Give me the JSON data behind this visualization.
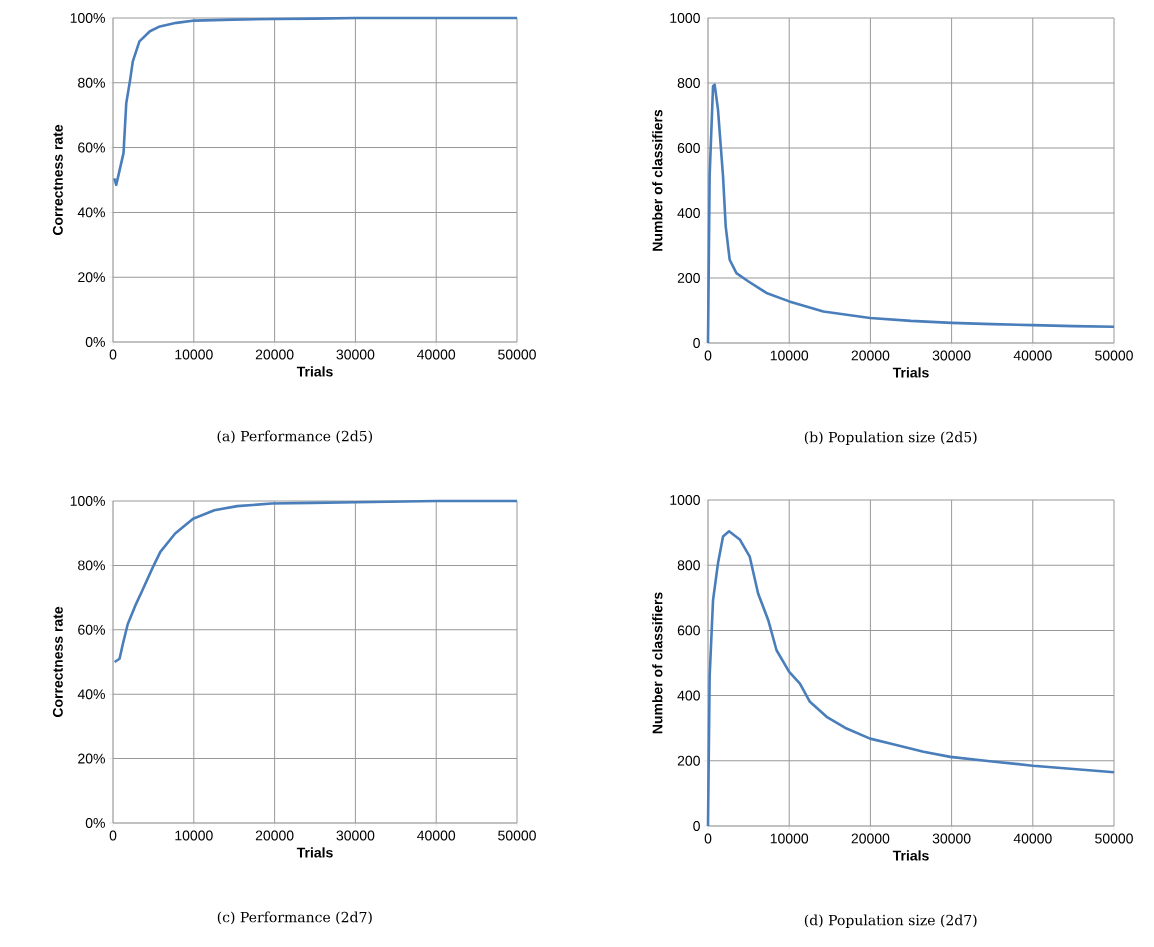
{
  "chart_data": [
    {
      "type": "line",
      "xlabel": "Trials",
      "ylabel": "Correctness rate",
      "annotations": [
        "(a)  Performance (2d5)"
      ],
      "grid": true,
      "x": [
        160,
        400,
        1300,
        1640,
        2120,
        2450,
        3270,
        4570,
        5800,
        7840,
        10090,
        14790,
        20000,
        25000,
        30000,
        35000,
        40000,
        45000,
        50000
      ],
      "series": [
        {
          "color": "#4a7ebb",
          "values": [
            50.5,
            48.5,
            58.3,
            73.7,
            80.9,
            86.6,
            92.8,
            95.9,
            97.4,
            98.5,
            99.2,
            99.5,
            99.7,
            99.8,
            100,
            100,
            100,
            100,
            100
          ]
        }
      ],
      "xlim": [
        0,
        50000
      ],
      "xticks": [
        0,
        10000,
        20000,
        30000,
        40000,
        50000
      ],
      "ylim": [
        0,
        100
      ],
      "yticks": [
        {
          "value": 0,
          "label": "0%"
        },
        {
          "value": 20,
          "label": "20%"
        },
        {
          "value": 40,
          "label": "40%"
        },
        {
          "value": 60,
          "label": "60%"
        },
        {
          "value": 80,
          "label": "80%"
        },
        {
          "value": 100,
          "label": "100%"
        }
      ]
    },
    {
      "type": "line",
      "xlabel": "Trials",
      "ylabel": "Number of classifiers",
      "annotations": [
        "(b)  Population size (2d5)"
      ],
      "grid": true,
      "x": [
        0,
        200,
        620,
        820,
        1230,
        1850,
        2180,
        2670,
        3500,
        4940,
        7200,
        10000,
        14200,
        19960,
        25000,
        30000,
        35000,
        40000,
        45000,
        50000
      ],
      "series": [
        {
          "color": "#4a7ebb",
          "values": [
            0,
            513,
            790,
            795,
            718,
            513,
            359,
            256,
            215,
            190,
            154,
            128,
            97,
            77,
            68,
            62,
            58,
            55,
            52,
            50
          ]
        }
      ],
      "xlim": [
        0,
        50000
      ],
      "xticks": [
        0,
        10000,
        20000,
        30000,
        40000,
        50000
      ],
      "ylim": [
        0,
        1000
      ],
      "yticks": [
        0,
        200,
        400,
        600,
        800,
        1000
      ]
    },
    {
      "type": "line",
      "xlabel": "Trials",
      "ylabel": "Correctness rate",
      "annotations": [
        "(c)  Performance (2d7)"
      ],
      "grid": true,
      "x": [
        200,
        810,
        1210,
        1820,
        2830,
        3640,
        4850,
        5860,
        7690,
        9910,
        12540,
        15370,
        19620,
        24640,
        30000,
        35000,
        40000,
        45000,
        50000
      ],
      "series": [
        {
          "color": "#4a7ebb",
          "values": [
            50,
            51,
            55.5,
            61.7,
            67.9,
            72.3,
            79,
            84.2,
            89.9,
            94.5,
            97.1,
            98.4,
            99.2,
            99.4,
            99.6,
            99.8,
            100,
            100,
            100
          ]
        }
      ],
      "xlim": [
        0,
        50000
      ],
      "xticks": [
        0,
        10000,
        20000,
        30000,
        40000,
        50000
      ],
      "ylim": [
        0,
        100
      ],
      "yticks": [
        {
          "value": 0,
          "label": "0%"
        },
        {
          "value": 20,
          "label": "20%"
        },
        {
          "value": 40,
          "label": "40%"
        },
        {
          "value": 60,
          "label": "60%"
        },
        {
          "value": 80,
          "label": "80%"
        },
        {
          "value": 100,
          "label": "100%"
        }
      ]
    },
    {
      "type": "line",
      "xlabel": "Trials",
      "ylabel": "Number of classifiers",
      "annotations": [
        "(d)  Population size (2d7)"
      ],
      "grid": true,
      "x": [
        0,
        200,
        620,
        1230,
        1850,
        2590,
        3910,
        5140,
        6170,
        7410,
        8440,
        10000,
        11320,
        12550,
        14610,
        17070,
        19960,
        22430,
        26540,
        29840,
        35000,
        40000,
        45000,
        50000
      ],
      "series": [
        {
          "color": "#4a7ebb",
          "values": [
            0,
            457,
            693,
            806,
            888,
            904,
            879,
            826,
            713,
            632,
            539,
            473,
            437,
            381,
            335,
            299,
            268,
            253,
            228,
            212,
            198,
            185,
            175,
            165
          ]
        }
      ],
      "xlim": [
        0,
        50000
      ],
      "xticks": [
        0,
        10000,
        20000,
        30000,
        40000,
        50000
      ],
      "ylim": [
        0,
        1000
      ],
      "yticks": [
        0,
        200,
        400,
        600,
        800,
        1000
      ]
    }
  ]
}
